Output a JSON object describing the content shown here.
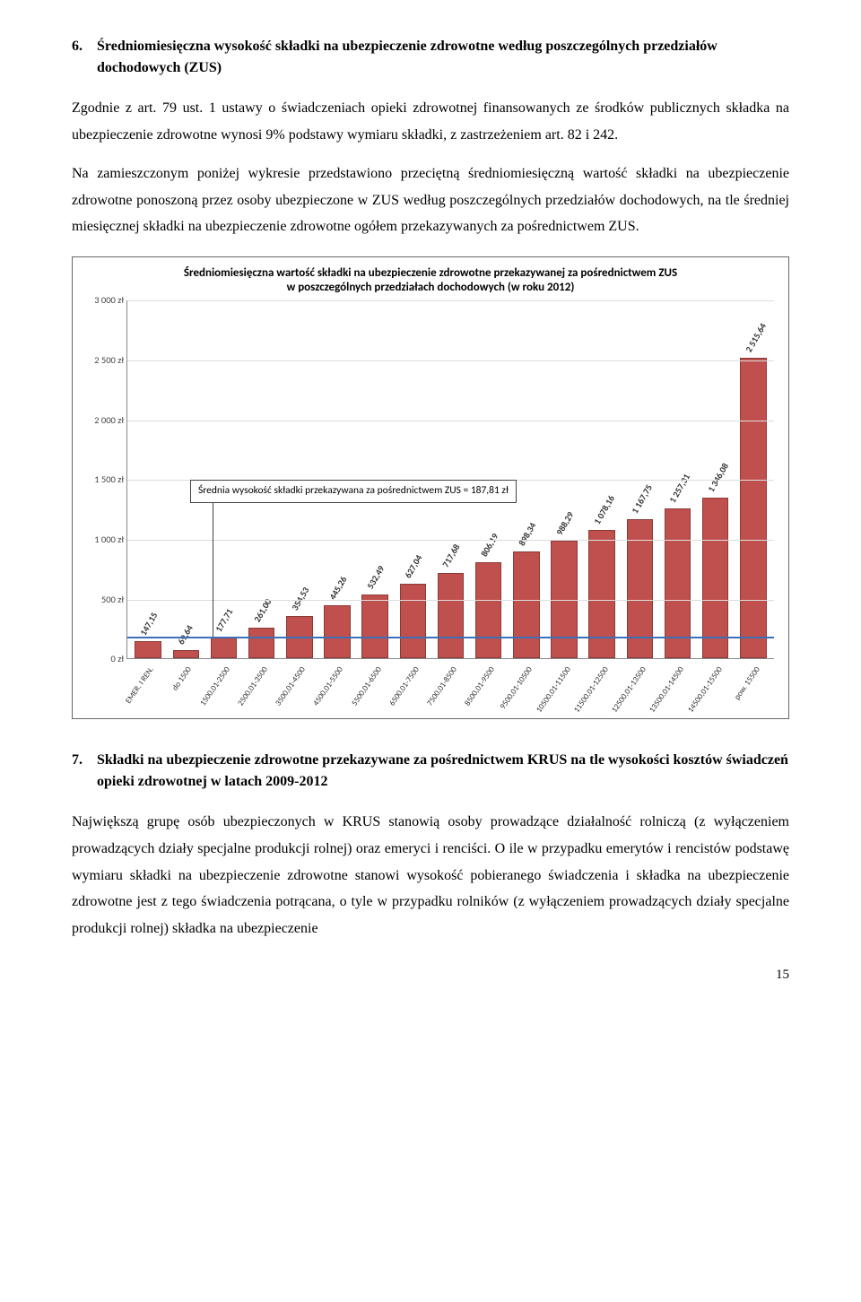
{
  "section6": {
    "number": "6.",
    "title": "Średniomiesięczna wysokość składki na ubezpieczenie zdrowotne według poszczególnych przedziałów dochodowych (ZUS)",
    "para1": "Zgodnie z art. 79 ust. 1 ustawy o świadczeniach opieki zdrowotnej finansowanych ze środków publicznych składka na ubezpieczenie zdrowotne wynosi 9% podstawy wymiaru składki, z zastrzeżeniem art. 82 i 242.",
    "para2": "Na zamieszczonym poniżej wykresie przedstawiono przeciętną średniomiesięczną wartość składki na ubezpieczenie zdrowotne ponoszoną przez osoby ubezpieczone w ZUS według poszczególnych przedziałów dochodowych, na tle średniej miesięcznej składki na ubezpieczenie zdrowotne ogółem przekazywanych za pośrednictwem ZUS."
  },
  "chart": {
    "title_line1": "Średniomiesięczna wartość składki na ubezpieczenie zdrowotne przekazywanej za pośrednictwem ZUS",
    "title_line2": "w poszczególnych przedziałach dochodowych (w roku 2012)",
    "y_max": 3000,
    "y_ticks": [
      0,
      500,
      1000,
      1500,
      2000,
      2500,
      3000
    ],
    "y_tick_labels": [
      "0 zł",
      "500 zł",
      "1 000 zł",
      "1 500 zł",
      "2 000 zł",
      "2 500 zł",
      "3 000 zł"
    ],
    "bar_color": "#c0504d",
    "avg_color": "#3b6fb6",
    "avg_value": 187.81,
    "avg_label": "Średnia wysokość składki przekazywana za pośrednictwem ZUS = 187,81 zł",
    "categories": [
      "EMER. I REN.",
      "do 1500",
      "1500,01-2500",
      "2500,01-3500",
      "3500,01-4500",
      "4500,01-5500",
      "5500,01-6500",
      "6500,01-7500",
      "7500,01-8500",
      "8500,01-9500",
      "9500,01-10500",
      "10500,01-11500",
      "11500,01-12500",
      "12500,01-13500",
      "13500,01-14500",
      "14500,01-15500",
      "pow. 15500"
    ],
    "values": [
      147.15,
      69.64,
      177.71,
      261.0,
      354.53,
      445.26,
      532.49,
      627.04,
      717.68,
      806.19,
      898.34,
      988.29,
      1078.16,
      1167.75,
      1257.31,
      1346.08,
      2515.64
    ],
    "value_labels": [
      "147,15",
      "69,64",
      "177,71",
      "261,00",
      "354,53",
      "445,26",
      "532,49",
      "627,04",
      "717,68",
      "806,19",
      "898,34",
      "988,29",
      "1 078,16",
      "1 167,75",
      "1 257,31",
      "1 346,08",
      "2 515,64"
    ]
  },
  "section7": {
    "number": "7.",
    "title": "Składki na ubezpieczenie zdrowotne przekazywane za pośrednictwem KRUS na tle wysokości kosztów świadczeń opieki zdrowotnej w latach 2009-2012",
    "para1": "Największą grupę osób ubezpieczonych w KRUS stanowią osoby prowadzące działalność rolniczą (z wyłączeniem prowadzących działy specjalne produkcji rolnej) oraz emeryci i renciści. O ile w przypadku emerytów i rencistów podstawę wymiaru składki na ubezpieczenie zdrowotne stanowi wysokość pobieranego świadczenia i składka na ubezpieczenie zdrowotne jest z tego świadczenia potrącana, o tyle w przypadku rolników (z wyłączeniem prowadzących działy specjalne produkcji rolnej) składka na ubezpieczenie"
  },
  "page_number": "15"
}
